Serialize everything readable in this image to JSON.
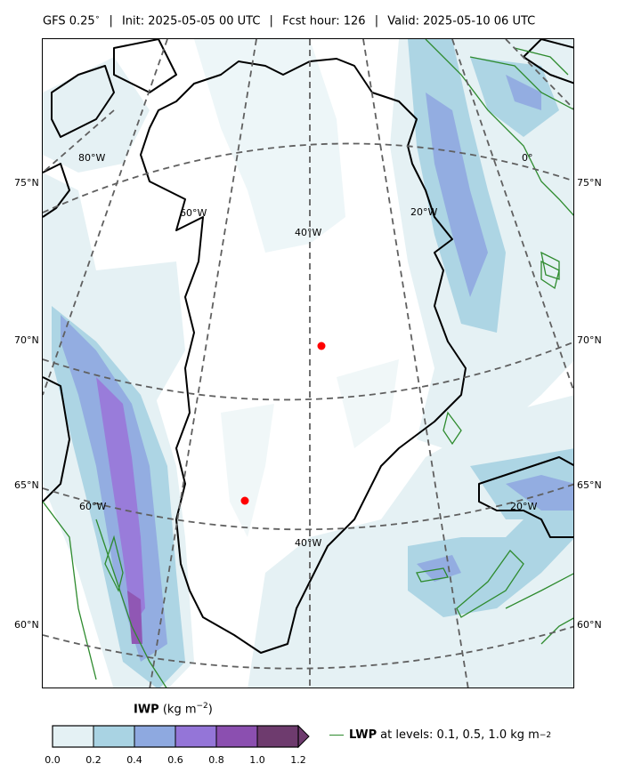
{
  "header": {
    "model": "GFS 0.25",
    "deg": "∘",
    "init": "Init: 2025-05-05 00 UTC",
    "fcst": "Fcst hour: 126",
    "valid": "Valid: 2025-05-10 06 UTC",
    "sep": "|"
  },
  "latitudes_left": [
    "75°N",
    "70°N",
    "65°N",
    "60°N"
  ],
  "latitudes_right": [
    "75°N",
    "70°N",
    "65°N",
    "60°N"
  ],
  "grid_labels": {
    "lon_80w": "80°W",
    "lon_60w_top": "60°W",
    "lon_40w_top": "40°W",
    "lon_20w_top": "20°W",
    "lon_0": "0°",
    "lon_60w_bottom": "60°W",
    "lon_40w_bottom": "40°W",
    "lon_20w_bottom": "20°W"
  },
  "markers": [
    {
      "name": "station-summit",
      "color": "#ff0000"
    },
    {
      "name": "station-southwest",
      "color": "#ff0000"
    }
  ],
  "colorbar": {
    "title_bold": "IWP",
    "title_units": "(kg m",
    "title_exp": "−2",
    "title_close": ")",
    "ticks": [
      "0.0",
      "0.2",
      "0.4",
      "0.6",
      "0.8",
      "1.0",
      "1.2"
    ],
    "colors": [
      "#e4f1f4",
      "#a9d3e3",
      "#8ea9e0",
      "#9475d8",
      "#8b4fb0",
      "#6e3b6e"
    ]
  },
  "legend": {
    "bold": "LWP",
    "text": "at levels: 0.1, 0.5, 1.0  kg m",
    "exp": "−2",
    "color": "#2e8b2e"
  },
  "colors": {
    "coastline": "#000000",
    "gridline": "#606060",
    "lwp_contour": "#2e8b2e"
  }
}
